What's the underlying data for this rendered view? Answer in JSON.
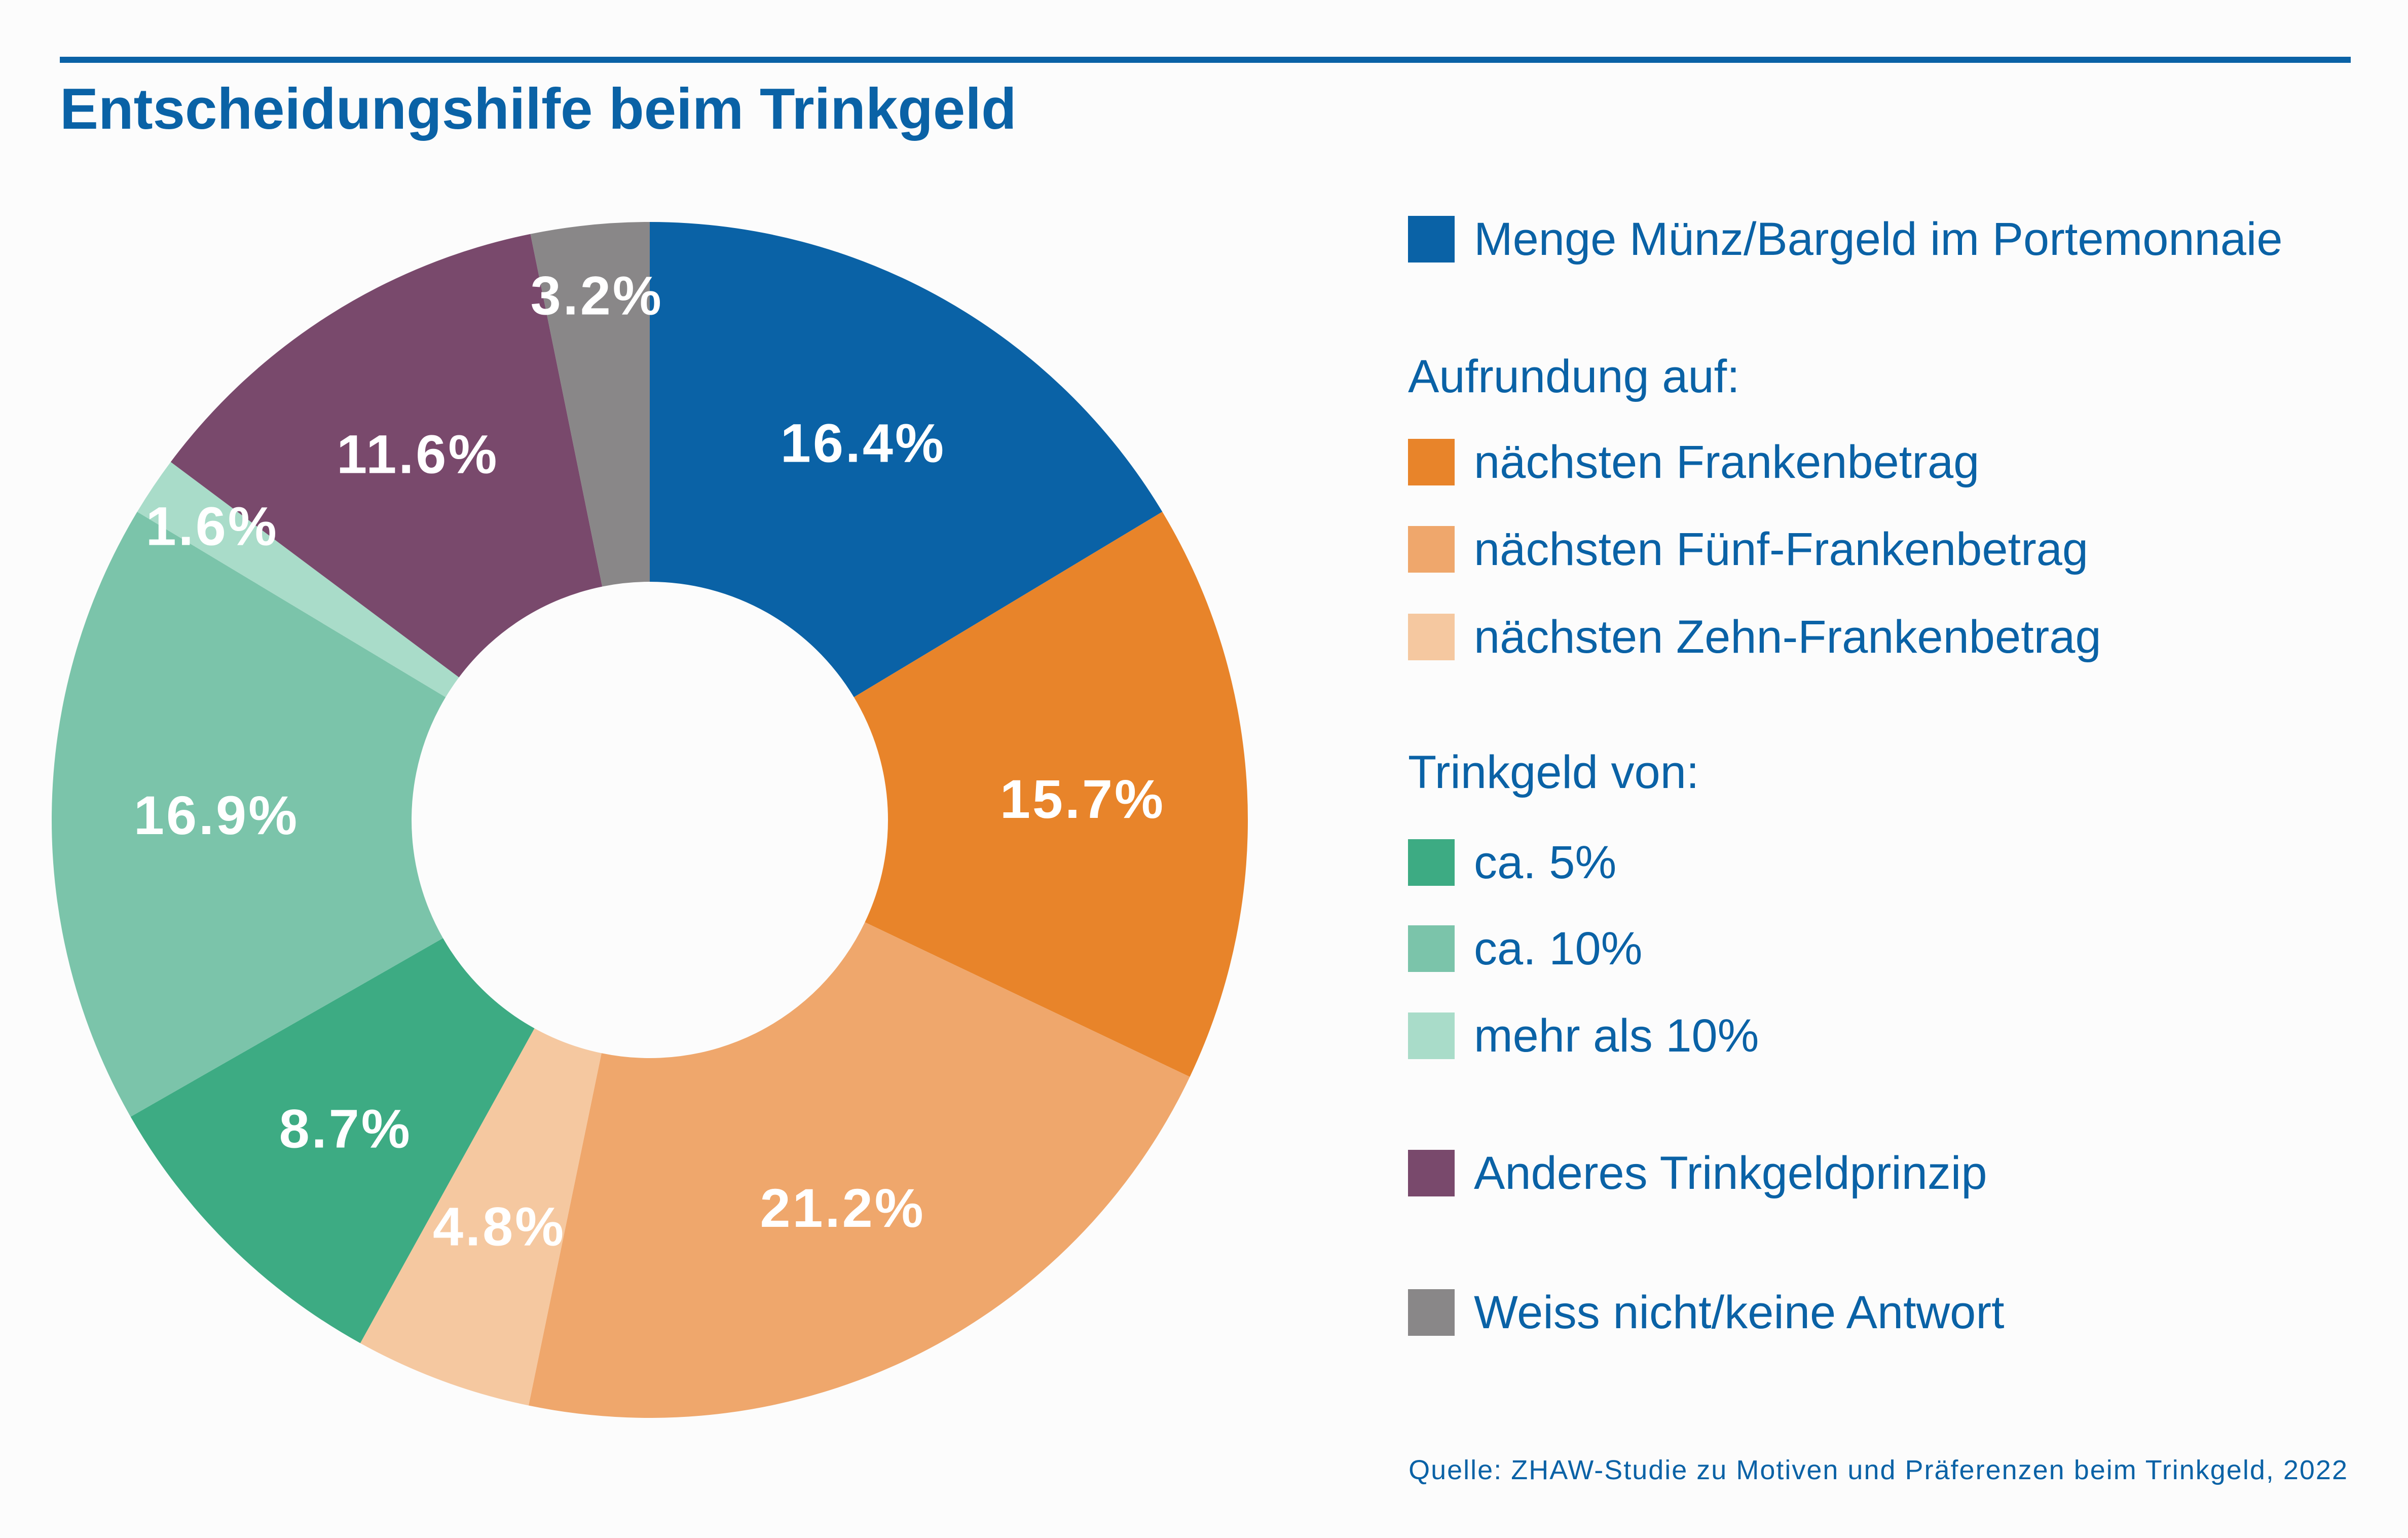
{
  "title": "Entscheidungshilfe beim Trinkgeld",
  "source": "Quelle: ZHAW-Studie zu Motiven und Präferenzen beim Trinkgeld, 2022",
  "legend": {
    "heading_aufrundung": "Aufrundung auf:",
    "heading_trinkgeld": "Trinkgeld von:"
  },
  "chart_data": {
    "type": "pie",
    "variant": "donut",
    "title": "Entscheidungshilfe beim Trinkgeld",
    "start": "top, clockwise",
    "slices": [
      {
        "label": "Menge Münz/Bargeld im Portemonnaie",
        "value": 16.4,
        "display": "16.4%",
        "color": "#0a62a6"
      },
      {
        "label": "nächsten Frankenbetrag",
        "value": 15.7,
        "display": "15.7%",
        "color": "#e8842a"
      },
      {
        "label": "nächsten Fünf-Frankenbetrag",
        "value": 21.2,
        "display": "21.2%",
        "color": "#efa76c"
      },
      {
        "label": "nächsten Zehn-Frankenbetrag",
        "value": 4.8,
        "display": "4.8%",
        "color": "#f5c8a0"
      },
      {
        "label": "ca. 5%",
        "value": 8.7,
        "display": "8.7%",
        "color": "#3dab83"
      },
      {
        "label": "ca. 10%",
        "value": 16.9,
        "display": "16.9%",
        "color": "#7bc4aa"
      },
      {
        "label": "mehr als 10%",
        "value": 1.6,
        "display": "1.6%",
        "color": "#a9dcc9"
      },
      {
        "label": "Anderes Trinkgeldprinzip",
        "value": 11.6,
        "display": "11.6%",
        "color": "#79496c"
      },
      {
        "label": "Weiss nicht/keine Antwort",
        "value": 3.2,
        "display": "3.2%",
        "color": "#898788"
      }
    ]
  }
}
